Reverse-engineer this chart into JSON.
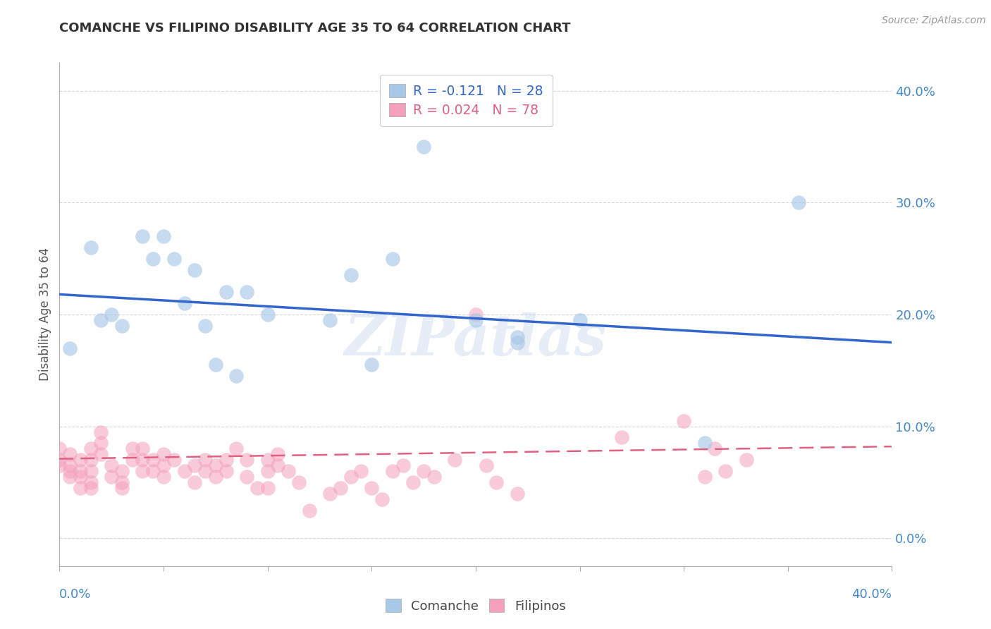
{
  "title": "COMANCHE VS FILIPINO DISABILITY AGE 35 TO 64 CORRELATION CHART",
  "source": "Source: ZipAtlas.com",
  "ylabel": "Disability Age 35 to 64",
  "watermark": "ZIPatlas",
  "legend_comanche_r": "R = -0.121",
  "legend_comanche_n": "N = 28",
  "legend_filipino_r": "R = 0.024",
  "legend_filipino_n": "N = 78",
  "comanche_color": "#a8c8e8",
  "filipino_color": "#f4a0bc",
  "comanche_line_color": "#3366cc",
  "filipino_line_color": "#e06080",
  "background_color": "#ffffff",
  "grid_color": "#cccccc",
  "axis_label_color": "#4488cc",
  "title_color": "#333333",
  "source_color": "#999999",
  "xlim": [
    0.0,
    0.4
  ],
  "ylim": [
    -0.025,
    0.425
  ],
  "yticks": [
    0.0,
    0.1,
    0.2,
    0.3,
    0.4
  ],
  "xticks": [
    0.0,
    0.05,
    0.1,
    0.15,
    0.2,
    0.25,
    0.3,
    0.35,
    0.4
  ],
  "comanche_x": [
    0.005,
    0.015,
    0.02,
    0.025,
    0.03,
    0.04,
    0.045,
    0.05,
    0.055,
    0.06,
    0.065,
    0.07,
    0.075,
    0.08,
    0.085,
    0.09,
    0.1,
    0.13,
    0.14,
    0.16,
    0.175,
    0.2,
    0.22,
    0.25,
    0.31,
    0.355,
    0.22,
    0.15
  ],
  "comanche_y": [
    0.17,
    0.26,
    0.195,
    0.2,
    0.19,
    0.27,
    0.25,
    0.27,
    0.25,
    0.21,
    0.24,
    0.19,
    0.155,
    0.22,
    0.145,
    0.22,
    0.2,
    0.195,
    0.235,
    0.25,
    0.35,
    0.195,
    0.18,
    0.195,
    0.085,
    0.3,
    0.175,
    0.155
  ],
  "filipino_x": [
    0.0,
    0.0,
    0.0,
    0.005,
    0.005,
    0.005,
    0.005,
    0.01,
    0.01,
    0.01,
    0.01,
    0.015,
    0.015,
    0.015,
    0.015,
    0.015,
    0.02,
    0.02,
    0.02,
    0.025,
    0.025,
    0.03,
    0.03,
    0.03,
    0.035,
    0.035,
    0.04,
    0.04,
    0.04,
    0.045,
    0.045,
    0.05,
    0.05,
    0.05,
    0.055,
    0.06,
    0.065,
    0.065,
    0.07,
    0.07,
    0.075,
    0.075,
    0.08,
    0.08,
    0.085,
    0.09,
    0.09,
    0.095,
    0.1,
    0.1,
    0.1,
    0.105,
    0.105,
    0.11,
    0.115,
    0.12,
    0.13,
    0.135,
    0.14,
    0.145,
    0.15,
    0.155,
    0.16,
    0.165,
    0.17,
    0.175,
    0.18,
    0.19,
    0.2,
    0.205,
    0.21,
    0.22,
    0.27,
    0.3,
    0.31,
    0.315,
    0.32,
    0.33
  ],
  "filipino_y": [
    0.065,
    0.07,
    0.08,
    0.055,
    0.06,
    0.065,
    0.075,
    0.045,
    0.055,
    0.06,
    0.07,
    0.045,
    0.05,
    0.06,
    0.07,
    0.08,
    0.075,
    0.085,
    0.095,
    0.055,
    0.065,
    0.045,
    0.05,
    0.06,
    0.07,
    0.08,
    0.06,
    0.07,
    0.08,
    0.06,
    0.07,
    0.055,
    0.065,
    0.075,
    0.07,
    0.06,
    0.05,
    0.065,
    0.06,
    0.07,
    0.055,
    0.065,
    0.06,
    0.07,
    0.08,
    0.055,
    0.07,
    0.045,
    0.045,
    0.06,
    0.07,
    0.065,
    0.075,
    0.06,
    0.05,
    0.025,
    0.04,
    0.045,
    0.055,
    0.06,
    0.045,
    0.035,
    0.06,
    0.065,
    0.05,
    0.06,
    0.055,
    0.07,
    0.2,
    0.065,
    0.05,
    0.04,
    0.09,
    0.105,
    0.055,
    0.08,
    0.06,
    0.07
  ],
  "comanche_trend_x": [
    0.0,
    0.4
  ],
  "comanche_trend_y": [
    0.218,
    0.175
  ],
  "filipino_trend_x": [
    0.0,
    0.4
  ],
  "filipino_trend_y": [
    0.071,
    0.082
  ]
}
